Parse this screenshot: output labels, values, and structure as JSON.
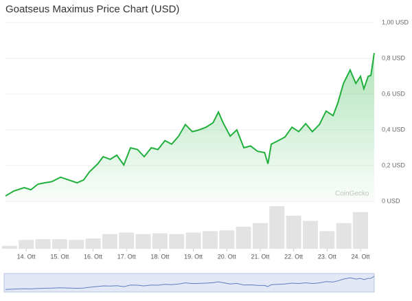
{
  "chart_data": {
    "type": "line",
    "title": "Goatseus Maximus Price Chart (USD)",
    "watermark": "CoinGecko",
    "series": [
      {
        "name": "Price",
        "color": "#1fb03c",
        "x": [
          13.38,
          13.63,
          13.94,
          14.14,
          14.35,
          14.55,
          14.76,
          15.03,
          15.27,
          15.52,
          15.72,
          15.89,
          16.14,
          16.3,
          16.51,
          16.71,
          16.92,
          17.12,
          17.33,
          17.53,
          17.74,
          17.94,
          18.15,
          18.35,
          18.56,
          18.76,
          18.97,
          19.17,
          19.38,
          19.59,
          19.75,
          19.89,
          20.1,
          20.3,
          20.51,
          20.71,
          20.92,
          21.13,
          21.23,
          21.33,
          21.54,
          21.74,
          21.95,
          22.15,
          22.36,
          22.56,
          22.77,
          22.97,
          23.18,
          23.32,
          23.49,
          23.69,
          23.86,
          24.0,
          24.1,
          24.23,
          24.31,
          24.41
        ],
        "values": [
          0.03,
          0.058,
          0.077,
          0.065,
          0.096,
          0.104,
          0.11,
          0.135,
          0.12,
          0.104,
          0.12,
          0.165,
          0.21,
          0.25,
          0.235,
          0.258,
          0.204,
          0.3,
          0.29,
          0.25,
          0.3,
          0.29,
          0.34,
          0.32,
          0.365,
          0.43,
          0.39,
          0.4,
          0.415,
          0.44,
          0.5,
          0.44,
          0.365,
          0.4,
          0.3,
          0.31,
          0.28,
          0.273,
          0.21,
          0.32,
          0.34,
          0.36,
          0.415,
          0.39,
          0.435,
          0.39,
          0.43,
          0.505,
          0.48,
          0.55,
          0.66,
          0.735,
          0.66,
          0.7,
          0.63,
          0.7,
          0.705,
          0.83
        ]
      }
    ],
    "volume": {
      "x": [
        13.5,
        14,
        14.5,
        15,
        15.5,
        16,
        16.5,
        17,
        17.5,
        18,
        18.5,
        19,
        19.5,
        20,
        20.5,
        21,
        21.5,
        22,
        22.5,
        23,
        23.5,
        24
      ],
      "values": [
        4,
        12,
        13,
        13,
        12,
        14,
        20,
        22,
        20,
        21,
        20,
        22,
        24,
        25,
        30,
        35,
        58,
        45,
        38,
        24,
        35,
        50
      ],
      "color": "#e3e3e3"
    },
    "xlim": [
      13.38,
      24.41
    ],
    "xticks": [
      {
        "value": 14,
        "label": "14. Ott"
      },
      {
        "value": 15,
        "label": "15. Ott"
      },
      {
        "value": 16,
        "label": "16. Ott"
      },
      {
        "value": 17,
        "label": "17. Ott"
      },
      {
        "value": 18,
        "label": "18. Ott"
      },
      {
        "value": 19,
        "label": "19. Ott"
      },
      {
        "value": 20,
        "label": "20. Ott"
      },
      {
        "value": 21,
        "label": "21. Ott"
      },
      {
        "value": 22,
        "label": "22. Ott"
      },
      {
        "value": 23,
        "label": "23. Ott"
      },
      {
        "value": 24,
        "label": "24. Ott"
      }
    ],
    "ylim": [
      0,
      1
    ],
    "yticks": [
      {
        "value": 0,
        "label": "0 USD"
      },
      {
        "value": 0.2,
        "label": "0,2 USD"
      },
      {
        "value": 0.4,
        "label": "0,4 USD"
      },
      {
        "value": 0.6,
        "label": "0,6 USD"
      },
      {
        "value": 0.8,
        "label": "0,8 USD"
      },
      {
        "value": 1,
        "label": "1,00 USD"
      }
    ],
    "grid": true
  }
}
